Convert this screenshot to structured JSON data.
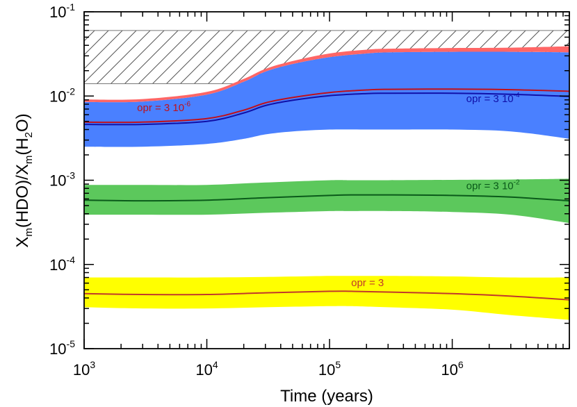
{
  "chart_data": {
    "type": "area",
    "title": "",
    "xlabel": "Time (years)",
    "ylabel": "Xm(HDO)/Xm(H2O)",
    "ylabel_parts": {
      "base1": "X",
      "sub1": "m",
      "mid": "(HDO)/X",
      "sub2": "m",
      "mid2": "(H",
      "sub3": "2",
      "end": "O)"
    },
    "x_scale": "log",
    "y_scale": "log",
    "xlim": [
      1000,
      9000000
    ],
    "ylim": [
      1e-05,
      0.1
    ],
    "x_ticks": [
      {
        "value": 1000,
        "base": "10",
        "exp": "3"
      },
      {
        "value": 10000,
        "base": "10",
        "exp": "4"
      },
      {
        "value": 100000,
        "base": "10",
        "exp": "5"
      },
      {
        "value": 1000000,
        "base": "10",
        "exp": "6"
      }
    ],
    "y_ticks": [
      {
        "value": 1e-05,
        "base": "10",
        "exp": "-5"
      },
      {
        "value": 0.0001,
        "base": "10",
        "exp": "-4"
      },
      {
        "value": 0.001,
        "base": "10",
        "exp": "-3"
      },
      {
        "value": 0.01,
        "base": "10",
        "exp": "-2"
      },
      {
        "value": 0.1,
        "base": "10",
        "exp": "-1"
      }
    ],
    "observed_range": {
      "x": [
        1000,
        9000000
      ],
      "y": [
        0.014,
        0.06
      ],
      "style": "hatched"
    },
    "series": [
      {
        "name": "opr = 3",
        "label_base": "opr = 3",
        "label_exp": "",
        "label_at": [
          150000,
          5.5e-05
        ],
        "line_color": "#c0392b",
        "band_color": "#ffff00",
        "x": [
          1000,
          3000,
          10000,
          30000,
          100000,
          150000,
          300000,
          1000000,
          3000000,
          9000000
        ],
        "y": [
          4.5e-05,
          4.4e-05,
          4.4e-05,
          4.6e-05,
          4.8e-05,
          4.8e-05,
          4.7e-05,
          4.5e-05,
          4.2e-05,
          3.8e-05
        ],
        "lower": [
          3.1e-05,
          3e-05,
          3e-05,
          3.1e-05,
          3.2e-05,
          3.2e-05,
          3.1e-05,
          2.9e-05,
          2.5e-05,
          2.2e-05
        ],
        "upper": [
          7e-05,
          7e-05,
          7e-05,
          7.1e-05,
          7.3e-05,
          7.3e-05,
          7.3e-05,
          7.2e-05,
          7e-05,
          7e-05
        ]
      },
      {
        "name": "opr = 3 10-2",
        "label_base": "opr = 3 10",
        "label_exp": "-2",
        "label_at": [
          1300000,
          0.00078
        ],
        "line_color": "#0a5a1a",
        "band_color": "#5cc85c",
        "x": [
          1000,
          3000,
          10000,
          30000,
          100000,
          150000,
          300000,
          1000000,
          3000000,
          9000000
        ],
        "y": [
          0.00058,
          0.00057,
          0.00058,
          0.00062,
          0.00066,
          0.00067,
          0.00067,
          0.00066,
          0.00063,
          0.00057
        ],
        "lower": [
          0.00039,
          0.00039,
          0.00039,
          0.00041,
          0.00043,
          0.00043,
          0.00043,
          0.00042,
          0.00039,
          0.00031
        ],
        "upper": [
          0.00088,
          0.00088,
          0.00088,
          0.00094,
          0.001,
          0.001,
          0.001,
          0.00101,
          0.00102,
          0.00104
        ]
      },
      {
        "name": "opr = 3 10-4",
        "label_base": "opr = 3 10",
        "label_exp": "-4",
        "label_at": [
          1300000,
          0.0085
        ],
        "line_color": "#1010a8",
        "band_color": "#4a80ff",
        "x": [
          1000,
          3000,
          10000,
          20000,
          30000,
          50000,
          100000,
          200000,
          300000,
          1000000,
          3000000,
          9000000
        ],
        "y": [
          0.0046,
          0.0046,
          0.005,
          0.0063,
          0.0077,
          0.0089,
          0.0101,
          0.0107,
          0.0108,
          0.0108,
          0.0105,
          0.0099
        ],
        "lower": [
          0.0025,
          0.0025,
          0.0027,
          0.0031,
          0.0035,
          0.0038,
          0.004,
          0.004,
          0.004,
          0.004,
          0.0038,
          0.0031
        ],
        "upper": [
          0.0085,
          0.0086,
          0.0104,
          0.0148,
          0.0195,
          0.024,
          0.029,
          0.032,
          0.033,
          0.0335,
          0.0335,
          0.033
        ]
      },
      {
        "name": "opr = 3 10-6",
        "label_base": "opr = 3 10",
        "label_exp": "-6",
        "label_at": [
          2700,
          0.0066
        ],
        "line_color": "#c0101a",
        "band_color": "#ff6666",
        "x": [
          1000,
          3000,
          10000,
          20000,
          30000,
          50000,
          100000,
          200000,
          300000,
          1000000,
          3000000,
          9000000
        ],
        "y": [
          0.0049,
          0.0049,
          0.0054,
          0.0068,
          0.0083,
          0.0096,
          0.011,
          0.0118,
          0.012,
          0.0121,
          0.0119,
          0.0114
        ],
        "lower": [
          0.0085,
          0.0086,
          0.0104,
          0.0148,
          0.0195,
          0.024,
          0.029,
          0.032,
          0.033,
          0.0335,
          0.0335,
          0.033
        ],
        "upper": [
          0.0091,
          0.0092,
          0.0112,
          0.016,
          0.021,
          0.026,
          0.032,
          0.0355,
          0.0365,
          0.0372,
          0.0375,
          0.039
        ]
      }
    ]
  }
}
